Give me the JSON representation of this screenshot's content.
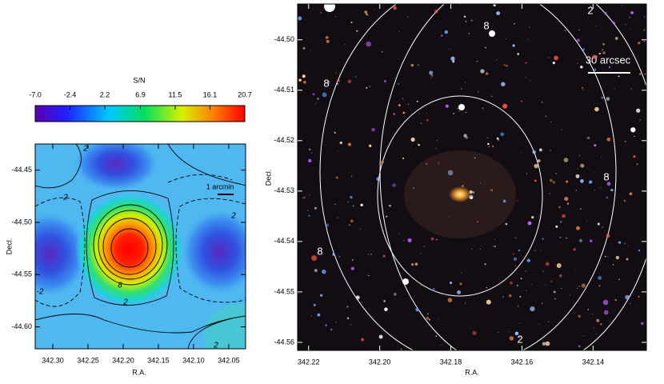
{
  "chart_data": [
    {
      "type": "heatmap",
      "colorbar_label": "S/N",
      "clim": [
        -7,
        20.7
      ],
      "colorbar_ticks": [
        {
          "value": -7,
          "label": "-7.0"
        },
        -2.4,
        2.2,
        6.9,
        11.5,
        16.1,
        20.7
      ],
      "xlabel": "R.A.",
      "ylabel": "Decl.",
      "xlim": [
        342.325,
        342.026
      ],
      "xticks": [
        {
          "value": 342.3,
          "label": "342.30"
        },
        342.25,
        {
          "value": 342.2,
          "label": "342.20"
        },
        342.15,
        {
          "value": 342.1,
          "label": "342.10"
        },
        342.05
      ],
      "ylim": [
        -44.621,
        -44.425
      ],
      "yticks": [
        -44.45,
        {
          "value": -44.5,
          "label": "-44.50"
        },
        -44.55,
        {
          "value": -44.6,
          "label": "-44.60"
        }
      ],
      "scale_bar": "1 arcmin",
      "contour_labels": [
        "2",
        "2",
        "2",
        "8",
        "2",
        "-2",
        "2"
      ]
    },
    {
      "type": "image",
      "xlabel": "R.A.",
      "ylabel": "Decl.",
      "xlim": [
        342.2231,
        342.125
      ],
      "xticks": [
        342.22,
        {
          "value": 342.2,
          "label": "342.20"
        },
        342.18,
        342.16,
        342.14
      ],
      "ylim": [
        -44.5616,
        -44.4929
      ],
      "yticks": [
        {
          "value": -44.5,
          "label": "-44.50"
        },
        -44.51,
        -44.52,
        -44.53,
        -44.54,
        -44.55,
        -44.56
      ],
      "scale_bar": "30 arcsec",
      "contour_labels": [
        "8",
        "8",
        "8",
        "8",
        "2",
        "2"
      ]
    }
  ]
}
